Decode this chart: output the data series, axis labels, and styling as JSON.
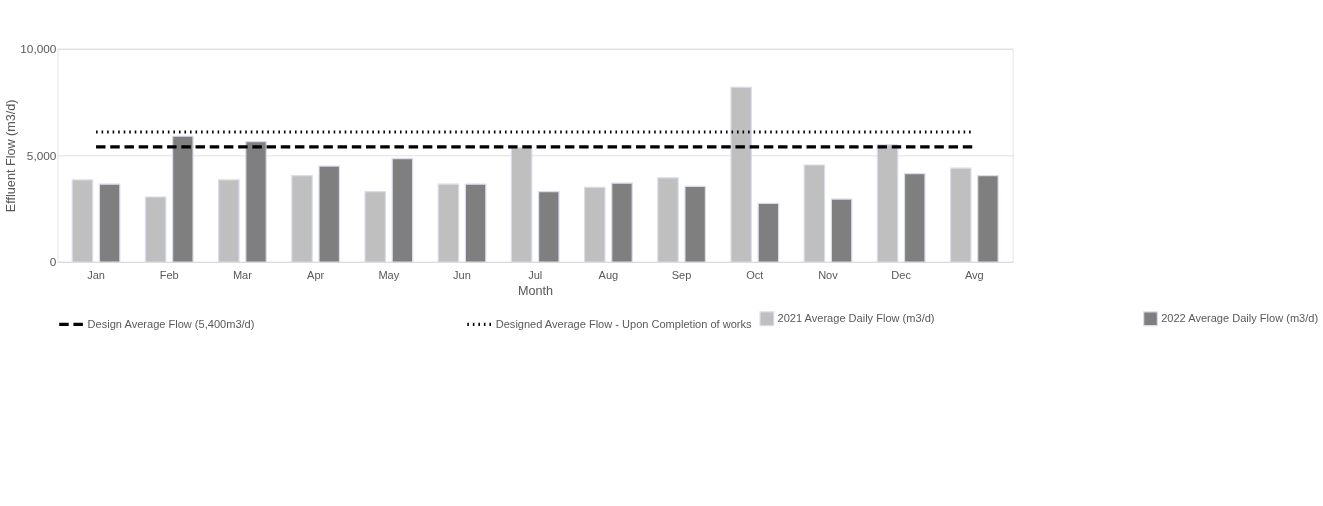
{
  "chart_data": {
    "type": "bar",
    "xlabel": "Month",
    "ylabel": "Effluent Flow (m3/d)",
    "categories": [
      "Jan",
      "Feb",
      "Mar",
      "Apr",
      "May",
      "Jun",
      "Jul",
      "Aug",
      "Sep",
      "Oct",
      "Nov",
      "Dec",
      "Avg"
    ],
    "series": [
      {
        "name": "2021 Average Daily Flow (m3/d)",
        "color": "#bfbfbf",
        "values": [
          3850,
          3050,
          3850,
          4050,
          3300,
          3650,
          5350,
          3500,
          3950,
          8200,
          4550,
          5500,
          4400
        ]
      },
      {
        "name": "2022 Average Daily Flow (m3/d)",
        "color": "#7f7f7f",
        "values": [
          3650,
          5900,
          5650,
          4500,
          4850,
          3650,
          3300,
          3700,
          3550,
          2750,
          2950,
          4150,
          4050
        ]
      },
      {
        "name": "Design Average Flow (5,400m3/d)",
        "type": "line",
        "line_style": "dashed",
        "color": "#000000",
        "values": [
          5400,
          5400,
          5400,
          5400,
          5400,
          5400,
          5400,
          5400,
          5400,
          5400,
          5400,
          5400,
          5400
        ]
      },
      {
        "name": "Designed Average Flow - Upon Completion of works",
        "type": "line",
        "line_style": "dotted",
        "color": "#000000",
        "values": [
          6100,
          6100,
          6100,
          6100,
          6100,
          6100,
          6100,
          6100,
          6100,
          6100,
          6100,
          6100,
          6100
        ]
      }
    ],
    "ylim": [
      0,
      10000
    ],
    "yticks": [
      0,
      {
        "value": 5000,
        "label": "5,000"
      },
      {
        "value": 10000,
        "label": "10,000"
      }
    ],
    "grid": "y",
    "legend": "bottom"
  }
}
